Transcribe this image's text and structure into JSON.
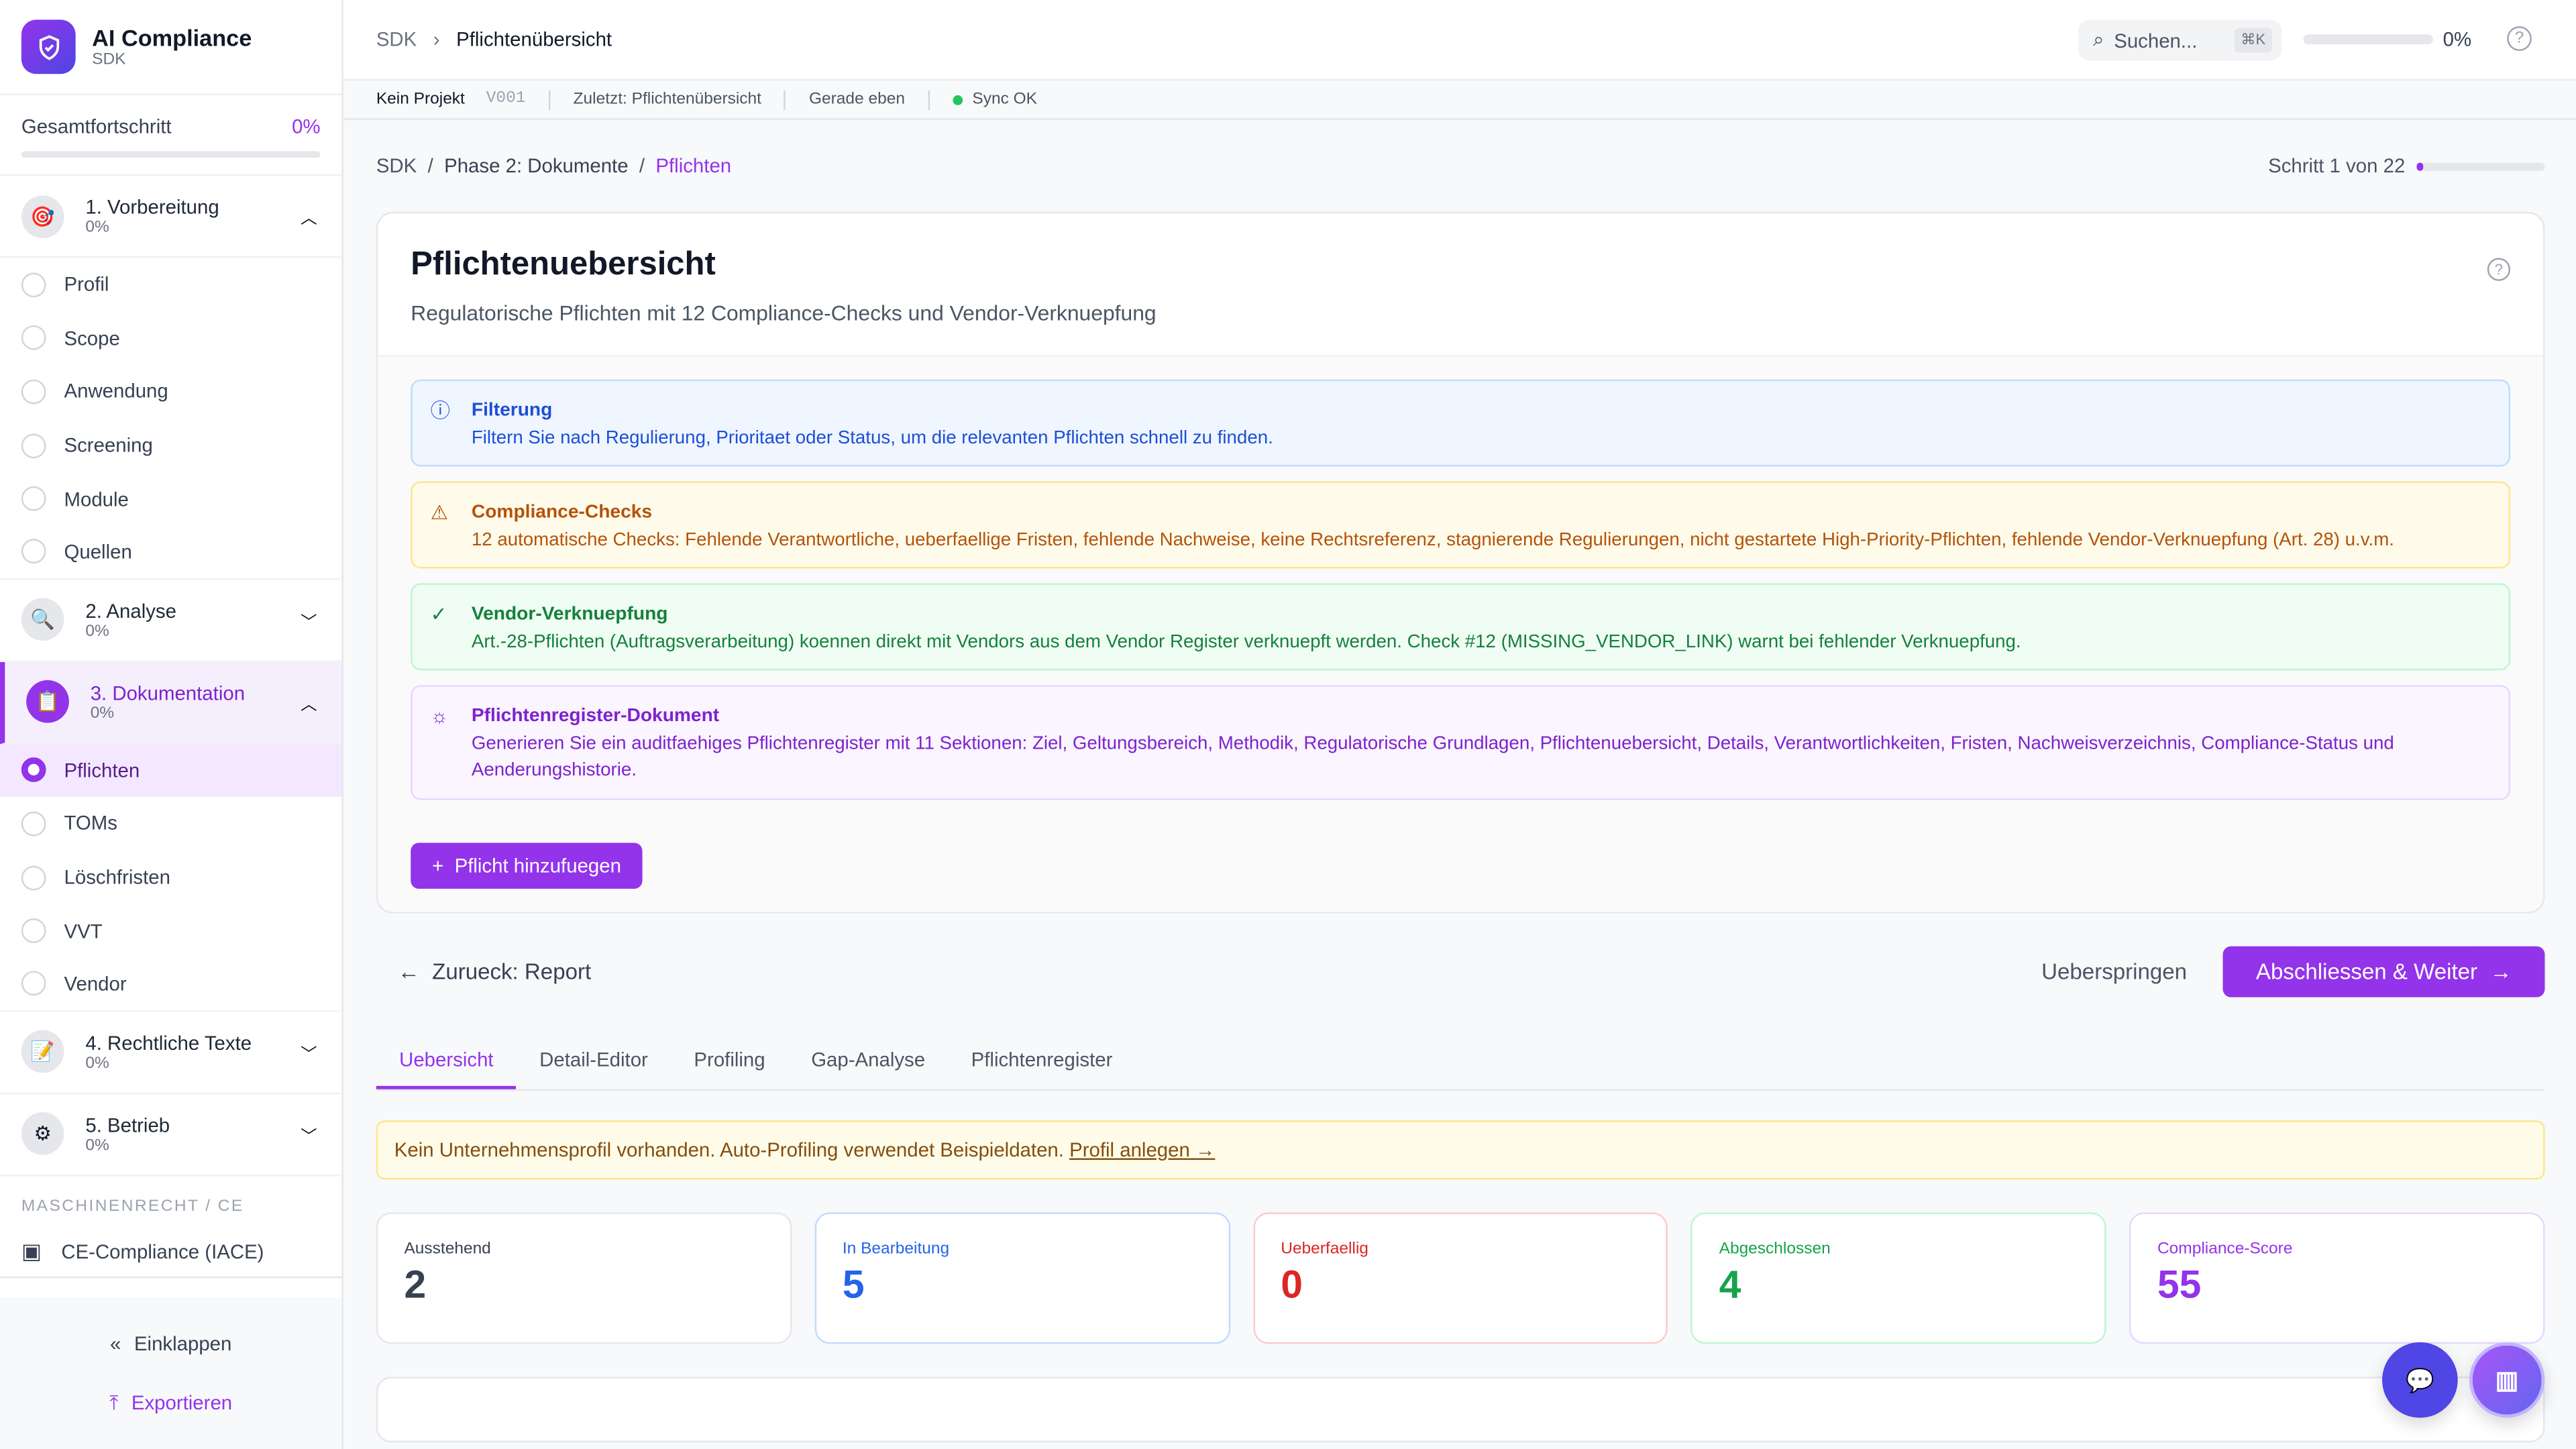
{
  "sidebar": {
    "app_title": "AI Compliance",
    "app_sub": "SDK",
    "progress_label": "Gesamtfortschritt",
    "progress_value": "0%",
    "progress_fraction": 0,
    "phases": [
      {
        "title": "1. Vorbereitung",
        "pct": "0%",
        "icon": "target-icon",
        "expanded": true,
        "steps": [
          "Profil",
          "Scope",
          "Anwendung",
          "Screening",
          "Module",
          "Quellen"
        ]
      },
      {
        "title": "2. Analyse",
        "pct": "0%",
        "icon": "magnifier-icon",
        "expanded": false
      },
      {
        "title": "3. Dokumentation",
        "pct": "0%",
        "icon": "clipboard-icon",
        "expanded": true,
        "steps": [
          "Pflichten",
          "TOMs",
          "Löschfristen",
          "VVT",
          "Vendor"
        ],
        "active_step": "Pflichten"
      },
      {
        "title": "4. Rechtliche Texte",
        "pct": "0%",
        "icon": "pencil-icon",
        "expanded": false
      },
      {
        "title": "5. Betrieb",
        "pct": "0%",
        "icon": "gear-icon",
        "expanded": false
      }
    ],
    "section_label": "MASCHINENRECHT / CE",
    "ce_item": "CE-Compliance (IACE)",
    "collapse": "Einklappen",
    "export": "Exportieren"
  },
  "header": {
    "crumb_root": "SDK",
    "crumb_current": "Pflichtenübersicht",
    "search_placeholder": "Suchen...",
    "search_shortcut": "⌘K",
    "progress": "0%",
    "progress_fraction": 0
  },
  "status": {
    "project": "Kein Projekt",
    "version": "V001",
    "last": "Zuletzt: Pflichtenübersicht",
    "time": "Gerade eben",
    "sync": "Sync OK",
    "sync_color": "#22c55e"
  },
  "breadcrumb": {
    "a": "SDK",
    "b": "Phase 2: Dokumente",
    "c": "Pflichten",
    "step": "Schritt 1 von 22",
    "step_fraction": 0.045
  },
  "card": {
    "title": "Pflichtenuebersicht",
    "subtitle": "Regulatorische Pflichten mit 12 Compliance-Checks und Vendor-Verknuepfung",
    "alerts": [
      {
        "title": "Filterung",
        "text": "Filtern Sie nach Regulierung, Prioritaet oder Status, um die relevanten Pflichten schnell zu finden."
      },
      {
        "title": "Compliance-Checks",
        "text": "12 automatische Checks: Fehlende Verantwortliche, ueberfaellige Fristen, fehlende Nachweise, keine Rechtsreferenz, stagnierende Regulierungen, nicht gestartete High-Priority-Pflichten, fehlende Vendor-Verknuepfung (Art. 28) u.v.m."
      },
      {
        "title": "Vendor-Verknuepfung",
        "text": "Art.-28-Pflichten (Auftragsverarbeitung) koennen direkt mit Vendors aus dem Vendor Register verknuepft werden. Check #12 (MISSING_VENDOR_LINK) warnt bei fehlender Verknuepfung."
      },
      {
        "title": "Pflichtenregister-Dokument",
        "text": "Generieren Sie ein auditfaehiges Pflichtenregister mit 11 Sektionen: Ziel, Geltungsbereich, Methodik, Regulatorische Grundlagen, Pflichtenuebersicht, Details, Verantwortlichkeiten, Fristen, Nachweisverzeichnis, Compliance-Status und Aenderungshistorie."
      }
    ],
    "add_button": "Pflicht hinzufuegen"
  },
  "nav": {
    "back": "Zurueck: Report",
    "skip": "Ueberspringen",
    "next": "Abschliessen & Weiter"
  },
  "tabs": [
    "Uebersicht",
    "Detail-Editor",
    "Profiling",
    "Gap-Analyse",
    "Pflichtenregister"
  ],
  "active_tab": "Uebersicht",
  "warning": {
    "text": "Kein Unternehmensprofil vorhanden. Auto-Profiling verwendet Beispieldaten.",
    "link": "Profil anlegen →"
  },
  "stats": [
    {
      "label": "Ausstehend",
      "value": "2",
      "color": "#374151"
    },
    {
      "label": "In Bearbeitung",
      "value": "5",
      "color": "#2563eb"
    },
    {
      "label": "Ueberfaellig",
      "value": "0",
      "color": "#dc2626"
    },
    {
      "label": "Abgeschlossen",
      "value": "4",
      "color": "#16a34a"
    },
    {
      "label": "Compliance-Score",
      "value": "55",
      "color": "#9333ea"
    }
  ],
  "colors": {
    "accent": "#9333ea"
  }
}
